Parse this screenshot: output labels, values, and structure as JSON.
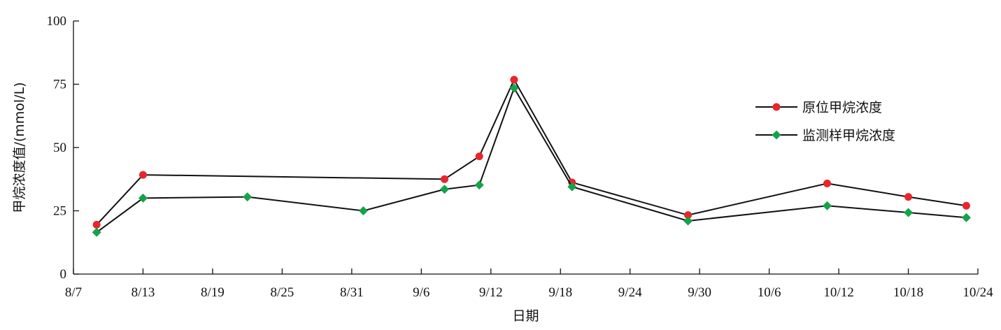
{
  "chart_data": {
    "type": "line",
    "xlabel": "日期",
    "ylabel": "甲烷浓度值/(mmol/L)",
    "ylim": [
      0,
      100
    ],
    "yticks": [
      0,
      25,
      50,
      75,
      100
    ],
    "xticks": [
      "8/7",
      "8/13",
      "8/19",
      "8/25",
      "8/31",
      "9/6",
      "9/12",
      "9/18",
      "9/24",
      "9/30",
      "10/6",
      "10/12",
      "10/18",
      "10/24"
    ],
    "grid": false,
    "legend_position": "right",
    "series": [
      {
        "name": "原位甲烷浓度",
        "marker": "circle",
        "marker_color": "#e8262b",
        "line_color": "#111111",
        "points": [
          {
            "x": "8/9",
            "y": 19.5
          },
          {
            "x": "8/13",
            "y": 39.2
          },
          {
            "x": "9/8",
            "y": 37.5
          },
          {
            "x": "9/11",
            "y": 46.5
          },
          {
            "x": "9/14",
            "y": 76.8
          },
          {
            "x": "9/19",
            "y": 36.2
          },
          {
            "x": "9/29",
            "y": 23.3
          },
          {
            "x": "10/11",
            "y": 35.8
          },
          {
            "x": "10/18",
            "y": 30.5
          },
          {
            "x": "10/23",
            "y": 27.0
          }
        ]
      },
      {
        "name": "监测样甲烷浓度",
        "marker": "diamond",
        "marker_color": "#14a34a",
        "line_color": "#111111",
        "points": [
          {
            "x": "8/9",
            "y": 16.5
          },
          {
            "x": "8/13",
            "y": 30.0
          },
          {
            "x": "8/22",
            "y": 30.5
          },
          {
            "x": "9/1",
            "y": 25.0
          },
          {
            "x": "9/8",
            "y": 33.5
          },
          {
            "x": "9/11",
            "y": 35.2
          },
          {
            "x": "9/14",
            "y": 73.5
          },
          {
            "x": "9/19",
            "y": 34.5
          },
          {
            "x": "9/29",
            "y": 21.0
          },
          {
            "x": "10/11",
            "y": 27.0
          },
          {
            "x": "10/18",
            "y": 24.3
          },
          {
            "x": "10/23",
            "y": 22.3
          }
        ]
      }
    ]
  }
}
